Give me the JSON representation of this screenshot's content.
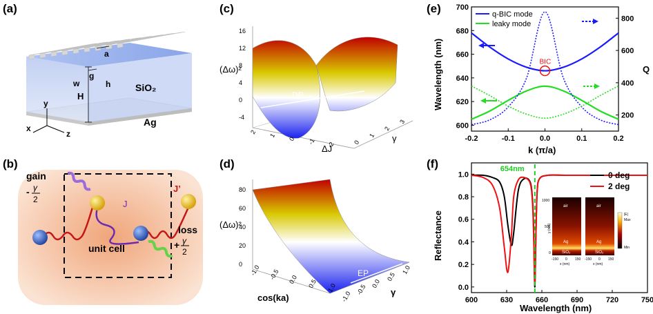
{
  "panels": {
    "a": {
      "label": "(a)",
      "dims": {
        "a": "a",
        "g": "g",
        "w": "w",
        "h": "h",
        "H": "H"
      },
      "materials": {
        "silica": "SiO₂",
        "silver": "Ag"
      },
      "axes": {
        "x": "x",
        "y": "y",
        "z": "z"
      }
    },
    "b": {
      "label": "(b)",
      "gain": "gain",
      "loss": "loss",
      "gain_sign": "-",
      "loss_sign": "+",
      "gamma": "γ",
      "two": "2",
      "coupling_J": "J",
      "coupling_Jp": "J’",
      "unit_cell": "unit cell"
    },
    "c": {
      "label": "(c)",
      "zlabel": "(Δω)²",
      "zticks": [
        "16",
        "12",
        "8",
        "4",
        "0",
        "-4"
      ],
      "xlabel": "ΔJ",
      "xticks": [
        "2",
        "1",
        "0",
        "-1",
        "-2"
      ],
      "ylabel": "γ",
      "yticks": [
        "0",
        "1",
        "2",
        "3"
      ],
      "annotation": "DP"
    },
    "d": {
      "label": "(d)",
      "zlabel": "(Δω)²",
      "zticks": [
        "80",
        "60",
        "40",
        "20",
        "0"
      ],
      "xlabel": "cos(ka)",
      "xticks": [
        "-1.0",
        "-0.5",
        "0.0",
        "0.5",
        "1.0"
      ],
      "ylabel": "γ",
      "yticks": [
        "-1.0",
        "-0.5",
        "0.0",
        "0.5",
        "1.0"
      ],
      "annotation": "EP"
    },
    "e": {
      "label": "(e)",
      "annotation": "BIC",
      "legend_position": "top-left",
      "colors": {
        "qbic": "#1a1aff",
        "leaky": "#22dd22",
        "marker": "#ee1111"
      }
    },
    "f": {
      "label": "(f)",
      "annotation": "654nm",
      "legend_position": "top-right",
      "colors": {
        "deg0": "#000000",
        "deg2": "#ee1111",
        "marker": "#22cc22"
      },
      "inset": {
        "left_medium": "air",
        "right_medium": "air",
        "metal": "Ag",
        "substrate": "SiO₂",
        "xlabel": "x (nm)",
        "ylabel": "y (nm)",
        "xticks": [
          "-150",
          "0",
          "150"
        ],
        "yticks": [
          "1000",
          "500",
          "0"
        ],
        "colorbar_max": "Max",
        "colorbar_min": "Min",
        "colorbar_title": "|E|"
      }
    }
  },
  "chart_data": [
    {
      "id": "e",
      "type": "line",
      "xlabel": "k (π/a)",
      "ylabel": "Wavelength (nm)",
      "y2label": "Q",
      "xlim": [
        -0.2,
        0.2
      ],
      "ylim": [
        595,
        700
      ],
      "y2lim": [
        100,
        870
      ],
      "xticks": [
        "-0.2",
        "-0.1",
        "0.0",
        "0.1",
        "0.2"
      ],
      "yticks": [
        "600",
        "620",
        "640",
        "660",
        "680",
        "700"
      ],
      "y2ticks": [
        "200",
        "400",
        "600",
        "800"
      ],
      "x": [
        -0.2,
        -0.15,
        -0.1,
        -0.05,
        0.0,
        0.05,
        0.1,
        0.15,
        0.2
      ],
      "series": [
        {
          "name": "q-BIC mode",
          "axis": "left",
          "style": "solid",
          "values": [
            678,
            666,
            656,
            649,
            646,
            649,
            656,
            666,
            678
          ]
        },
        {
          "name": "leaky mode",
          "axis": "left",
          "style": "solid",
          "values": [
            605,
            612,
            621,
            629,
            633,
            629,
            621,
            612,
            605
          ]
        },
        {
          "axis": "right",
          "style": "dotted",
          "color": "qbic",
          "values": [
            140,
            170,
            250,
            430,
            840,
            430,
            250,
            170,
            140
          ]
        },
        {
          "axis": "right",
          "style": "dotted",
          "color": "leaky",
          "values": [
            380,
            320,
            255,
            205,
            180,
            205,
            255,
            320,
            380
          ]
        }
      ]
    },
    {
      "id": "f",
      "type": "line",
      "xlabel": "Wavelength (nm)",
      "ylabel": "Reflectance",
      "xlim": [
        600,
        750
      ],
      "ylim": [
        -0.05,
        1.1
      ],
      "xticks": [
        "600",
        "630",
        "660",
        "690",
        "720",
        "750"
      ],
      "yticks": [
        "0.0",
        "0.2",
        "0.4",
        "0.6",
        "0.8",
        "1.0"
      ],
      "x": [
        600,
        610,
        618,
        624,
        628,
        631,
        634,
        636,
        640,
        645,
        650,
        652,
        653,
        654,
        655,
        656,
        658,
        665,
        680,
        700,
        720,
        750
      ],
      "series": [
        {
          "name": "0 deg",
          "values": [
            0.99,
            0.99,
            0.97,
            0.93,
            0.8,
            0.55,
            0.37,
            0.48,
            0.86,
            0.96,
            0.93,
            0.78,
            0.5,
            0.0,
            0.5,
            0.85,
            0.96,
            0.99,
            0.99,
            0.99,
            0.99,
            0.99
          ]
        },
        {
          "name": "2 deg",
          "values": [
            0.99,
            0.97,
            0.9,
            0.7,
            0.35,
            0.13,
            0.45,
            0.8,
            0.95,
            0.97,
            0.92,
            0.75,
            0.45,
            0.02,
            0.48,
            0.84,
            0.96,
            0.99,
            0.99,
            0.99,
            0.99,
            0.99
          ]
        }
      ],
      "marker_x": 654
    }
  ]
}
